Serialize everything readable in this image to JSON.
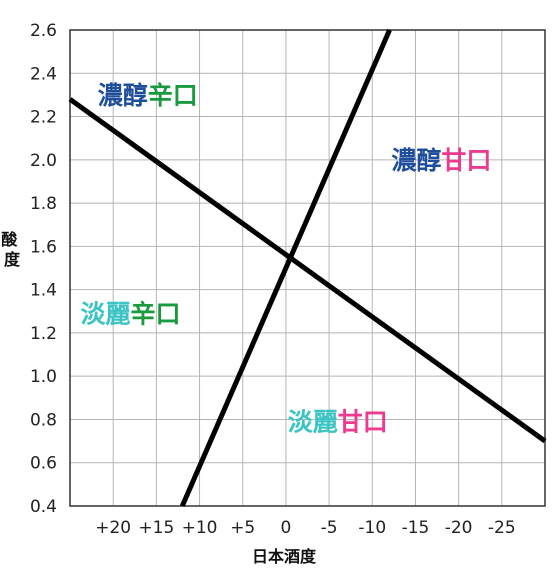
{
  "chart_data": {
    "type": "line",
    "xlabel": "日本酒度",
    "ylabel": "酸度",
    "x_ticks": [
      "+20",
      "+15",
      "+10",
      "+5",
      "0",
      "-5",
      "-10",
      "-15",
      "-20",
      "-25"
    ],
    "x_tick_values": [
      20,
      15,
      10,
      5,
      0,
      -5,
      -10,
      -15,
      -20,
      -25
    ],
    "xlim": [
      25,
      -30
    ],
    "y_ticks": [
      "0.4",
      "0.6",
      "0.8",
      "1.0",
      "1.2",
      "1.4",
      "1.6",
      "1.8",
      "2.0",
      "2.2",
      "2.4",
      "2.6"
    ],
    "ylim": [
      0.4,
      2.6
    ],
    "grid": true,
    "series": [
      {
        "points": [
          [
            25,
            2.28
          ],
          [
            -30,
            0.7
          ]
        ]
      },
      {
        "points": [
          [
            12,
            0.4
          ],
          [
            -12,
            2.6
          ]
        ]
      }
    ],
    "regions": [
      {
        "parts": [
          {
            "text": "濃醇",
            "color": "#1f4e9c"
          },
          {
            "text": "辛口",
            "color": "#1a9a3f"
          }
        ],
        "x": 16,
        "y": 2.3
      },
      {
        "parts": [
          {
            "text": "濃醇",
            "color": "#1f4e9c"
          },
          {
            "text": "甘口",
            "color": "#ee3b8f"
          }
        ],
        "x": -18,
        "y": 2.0
      },
      {
        "parts": [
          {
            "text": "淡麗",
            "color": "#3cc4c4"
          },
          {
            "text": "辛口",
            "color": "#1a9a3f"
          }
        ],
        "x": 18,
        "y": 1.29
      },
      {
        "parts": [
          {
            "text": "淡麗",
            "color": "#3cc4c4"
          },
          {
            "text": "甘口",
            "color": "#ee3b8f"
          }
        ],
        "x": -6,
        "y": 0.79
      }
    ],
    "colors": {
      "line": "#000000",
      "grid": "#b5b5b5",
      "frame": "#333333"
    }
  }
}
